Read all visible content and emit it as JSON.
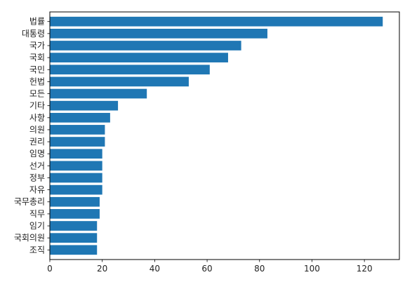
{
  "chart_data": {
    "type": "bar",
    "orientation": "horizontal",
    "categories": [
      "법률",
      "대통령",
      "국가",
      "국회",
      "국민",
      "헌법",
      "모든",
      "기타",
      "사항",
      "의원",
      "권리",
      "임명",
      "선거",
      "정부",
      "자유",
      "국무총리",
      "직무",
      "임기",
      "국회의원",
      "조직"
    ],
    "values": [
      127,
      83,
      73,
      68,
      61,
      53,
      37,
      26,
      23,
      21,
      21,
      20,
      20,
      20,
      20,
      19,
      19,
      18,
      18,
      18
    ],
    "xlim": [
      0,
      133.35
    ],
    "xticks": [
      0,
      20,
      40,
      60,
      80,
      100,
      120
    ],
    "grid": false,
    "bar_color": "#1f77b4",
    "title": "",
    "xlabel": "",
    "ylabel": ""
  }
}
